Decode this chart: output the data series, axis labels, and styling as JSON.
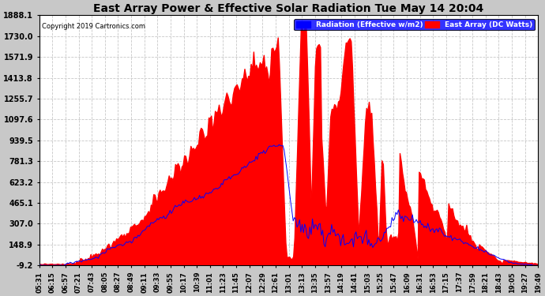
{
  "title": "East Array Power & Effective Solar Radiation Tue May 14 20:04",
  "copyright": "Copyright 2019 Cartronics.com",
  "legend_radiation": "Radiation (Effective w/m2)",
  "legend_east": "East Array (DC Watts)",
  "yticks": [
    -9.2,
    148.9,
    307.0,
    465.1,
    623.2,
    781.3,
    939.5,
    1097.6,
    1255.7,
    1413.8,
    1571.9,
    1730.0,
    1888.1
  ],
  "ymin": -9.2,
  "ymax": 1888.1,
  "fig_bg_color": "#c8c8c8",
  "plot_bg_color": "#ffffff",
  "grid_color": "#c8c8c8",
  "red_fill_color": "#ff0000",
  "blue_line_color": "#0000ff",
  "xtick_labels": [
    "05:31",
    "06:15",
    "06:57",
    "07:21",
    "07:43",
    "08:05",
    "08:27",
    "08:49",
    "09:11",
    "09:33",
    "09:55",
    "10:17",
    "10:39",
    "11:01",
    "11:23",
    "11:45",
    "12:07",
    "12:29",
    "12:61",
    "13:01",
    "13:13",
    "13:35",
    "13:57",
    "14:19",
    "14:41",
    "15:03",
    "15:25",
    "15:47",
    "16:09",
    "16:31",
    "16:53",
    "17:15",
    "17:37",
    "17:59",
    "18:21",
    "18:43",
    "19:05",
    "19:27",
    "19:49"
  ],
  "n_points": 390
}
